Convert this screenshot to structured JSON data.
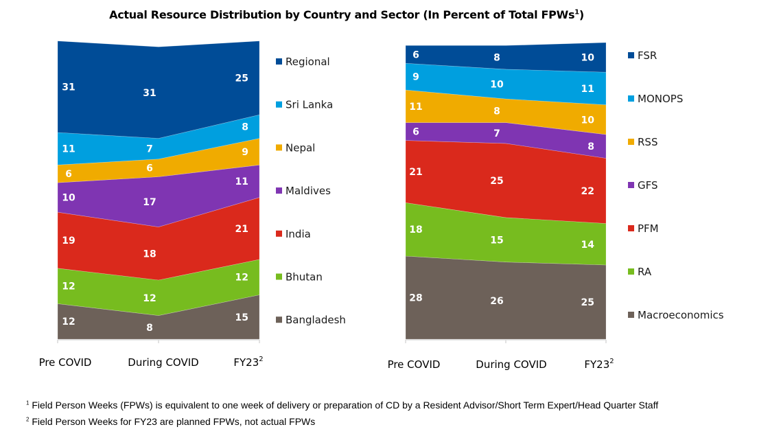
{
  "title": "Actual Resource Distribution by Country and Sector (In Percent of Total FPWs",
  "title_sup": "1",
  "title_close": ")",
  "chart_data": [
    {
      "type": "area",
      "stacked": true,
      "name": "By Country",
      "categories": [
        "Pre COVID",
        "During COVID",
        "FY23"
      ],
      "category_sups": [
        "",
        "",
        "2"
      ],
      "ylim": [
        0,
        100
      ],
      "grid": false,
      "legend_position": "right",
      "series": [
        {
          "name": "Bangladesh",
          "color": "#6d6159",
          "values": [
            12,
            8,
            15
          ]
        },
        {
          "name": "Bhutan",
          "color": "#77bc1f",
          "values": [
            12,
            12,
            12
          ]
        },
        {
          "name": "India",
          "color": "#da291c",
          "values": [
            19,
            18,
            21
          ]
        },
        {
          "name": "Maldives",
          "color": "#7f35b2",
          "values": [
            10,
            17,
            11
          ]
        },
        {
          "name": "Nepal",
          "color": "#f0ab00",
          "values": [
            6,
            6,
            9
          ]
        },
        {
          "name": "Sri Lanka",
          "color": "#009fdf",
          "values": [
            11,
            7,
            8
          ]
        },
        {
          "name": "Regional",
          "color": "#004c97",
          "values": [
            31,
            31,
            25
          ]
        }
      ]
    },
    {
      "type": "area",
      "stacked": true,
      "name": "By Sector",
      "categories": [
        "Pre COVID",
        "During COVID",
        "FY23"
      ],
      "category_sups": [
        "",
        "",
        "2"
      ],
      "ylim": [
        0,
        100
      ],
      "grid": false,
      "legend_position": "right",
      "series": [
        {
          "name": "Macroeconomics",
          "color": "#6d6159",
          "values": [
            28,
            26,
            25
          ]
        },
        {
          "name": "RA",
          "color": "#77bc1f",
          "values": [
            18,
            15,
            14
          ]
        },
        {
          "name": "PFM",
          "color": "#da291c",
          "values": [
            21,
            25,
            22
          ]
        },
        {
          "name": "GFS",
          "color": "#7f35b2",
          "values": [
            6,
            7,
            8
          ]
        },
        {
          "name": "RSS",
          "color": "#f0ab00",
          "values": [
            11,
            8,
            10
          ]
        },
        {
          "name": "MONOPS",
          "color": "#009fdf",
          "values": [
            9,
            10,
            11
          ]
        },
        {
          "name": "FSR",
          "color": "#004c97",
          "values": [
            6,
            8,
            10
          ]
        }
      ]
    }
  ],
  "footnotes": [
    {
      "sup": "1",
      "text": " Field Person Weeks (FPWs) is equivalent to one week of delivery or preparation of CD by a Resident Advisor/Short Term Expert/Head Quarter Staff"
    },
    {
      "sup": "2",
      "text": " Field Person Weeks for FY23 are planned FPWs, not actual FPWs"
    }
  ]
}
